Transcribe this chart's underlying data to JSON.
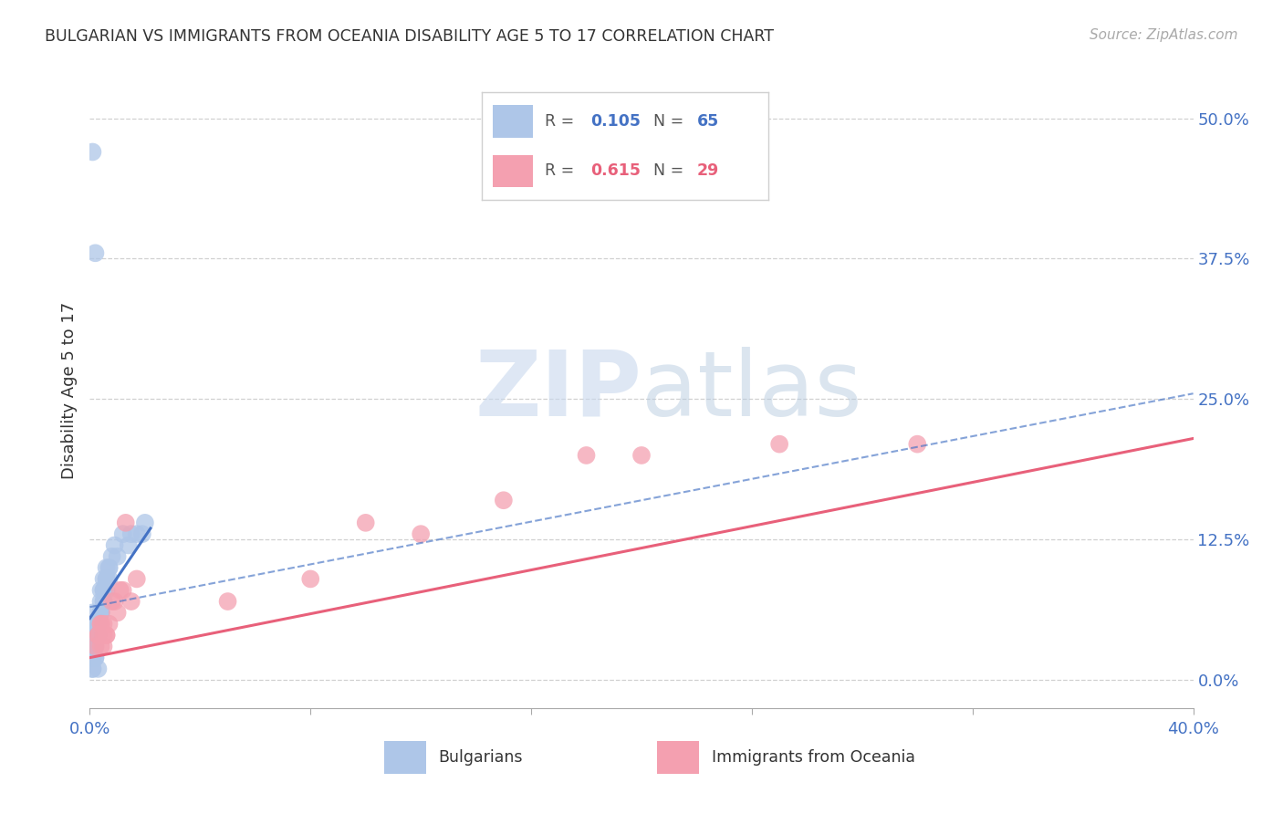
{
  "title": "BULGARIAN VS IMMIGRANTS FROM OCEANIA DISABILITY AGE 5 TO 17 CORRELATION CHART",
  "source": "Source: ZipAtlas.com",
  "ylabel": "Disability Age 5 to 17",
  "xlim": [
    0.0,
    0.4
  ],
  "ylim": [
    -0.025,
    0.54
  ],
  "ytick_values": [
    0.0,
    0.125,
    0.25,
    0.375,
    0.5
  ],
  "xtick_values": [
    0.0,
    0.08,
    0.16,
    0.24,
    0.32,
    0.4
  ],
  "legend1_color": "#aec6e8",
  "legend2_color": "#f4a0b0",
  "line1_color": "#4472c4",
  "line2_color": "#e8607a",
  "background_color": "#ffffff",
  "grid_color": "#d0d0d0",
  "r1": 0.105,
  "n1": 65,
  "r2": 0.615,
  "n2": 29,
  "bulg_x": [
    0.001,
    0.002,
    0.001,
    0.002,
    0.003,
    0.001,
    0.002,
    0.001,
    0.003,
    0.002,
    0.001,
    0.002,
    0.003,
    0.001,
    0.002,
    0.003,
    0.001,
    0.002,
    0.001,
    0.003,
    0.002,
    0.001,
    0.002,
    0.003,
    0.002,
    0.001,
    0.002,
    0.003,
    0.001,
    0.002,
    0.004,
    0.003,
    0.004,
    0.005,
    0.004,
    0.003,
    0.004,
    0.005,
    0.004,
    0.003,
    0.005,
    0.004,
    0.006,
    0.005,
    0.006,
    0.007,
    0.006,
    0.005,
    0.007,
    0.006,
    0.007,
    0.008,
    0.009,
    0.01,
    0.012,
    0.014,
    0.015,
    0.017,
    0.019,
    0.02,
    0.001,
    0.002,
    0.003,
    0.002,
    0.001
  ],
  "bulg_y": [
    0.47,
    0.38,
    0.04,
    0.05,
    0.04,
    0.03,
    0.05,
    0.06,
    0.04,
    0.05,
    0.03,
    0.04,
    0.05,
    0.03,
    0.04,
    0.05,
    0.03,
    0.04,
    0.02,
    0.05,
    0.04,
    0.03,
    0.04,
    0.05,
    0.04,
    0.02,
    0.03,
    0.04,
    0.03,
    0.04,
    0.06,
    0.05,
    0.06,
    0.07,
    0.06,
    0.05,
    0.08,
    0.07,
    0.06,
    0.05,
    0.08,
    0.07,
    0.09,
    0.08,
    0.1,
    0.09,
    0.08,
    0.09,
    0.1,
    0.09,
    0.1,
    0.11,
    0.12,
    0.11,
    0.13,
    0.12,
    0.13,
    0.13,
    0.13,
    0.14,
    0.01,
    0.02,
    0.01,
    0.02,
    0.01
  ],
  "oce_x": [
    0.002,
    0.003,
    0.004,
    0.003,
    0.004,
    0.005,
    0.004,
    0.005,
    0.006,
    0.005,
    0.006,
    0.007,
    0.008,
    0.009,
    0.01,
    0.011,
    0.012,
    0.013,
    0.015,
    0.017,
    0.05,
    0.08,
    0.1,
    0.12,
    0.15,
    0.18,
    0.2,
    0.25,
    0.3
  ],
  "oce_y": [
    0.03,
    0.04,
    0.03,
    0.04,
    0.05,
    0.04,
    0.05,
    0.03,
    0.04,
    0.05,
    0.04,
    0.05,
    0.07,
    0.07,
    0.06,
    0.08,
    0.08,
    0.14,
    0.07,
    0.09,
    0.07,
    0.09,
    0.14,
    0.13,
    0.16,
    0.2,
    0.2,
    0.21,
    0.21
  ],
  "bulg_line_x": [
    0.0,
    0.022
  ],
  "bulg_line_y": [
    0.055,
    0.135
  ],
  "oce_line_x": [
    0.0,
    0.4
  ],
  "oce_line_y": [
    0.02,
    0.215
  ],
  "dash_line_x": [
    0.0,
    0.4
  ],
  "dash_line_y": [
    0.065,
    0.255
  ]
}
